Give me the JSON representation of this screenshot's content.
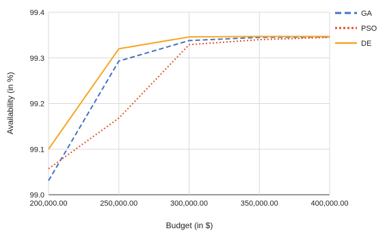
{
  "chart_data": {
    "type": "line",
    "title": "",
    "xlabel": "Budget (in $)",
    "ylabel": "Availability (in %)",
    "x": [
      200000,
      250000,
      300000,
      350000,
      400000
    ],
    "x_tick_labels": [
      "200,000.00",
      "250,000.00",
      "300,000.00",
      "350,000.00",
      "400,000.00"
    ],
    "xlim": [
      200000,
      400000
    ],
    "y_ticks": [
      99.0,
      99.1,
      99.2,
      99.3,
      99.4
    ],
    "y_tick_labels": [
      "99.0",
      "99.1",
      "99.2",
      "99.3",
      "99.4"
    ],
    "ylim": [
      99.0,
      99.4
    ],
    "grid": true,
    "legend_position": "top-right",
    "series": [
      {
        "name": "GA",
        "values": [
          99.031,
          99.293,
          99.338,
          99.345,
          99.346
        ],
        "color": "#4472c4",
        "line_style": "dashed"
      },
      {
        "name": "PSO",
        "values": [
          99.057,
          99.168,
          99.329,
          99.34,
          99.345
        ],
        "color": "#e0522a",
        "line_style": "dotted"
      },
      {
        "name": "DE",
        "values": [
          99.1,
          99.32,
          99.346,
          99.347,
          99.347
        ],
        "color": "#f5a623",
        "line_style": "solid"
      }
    ]
  }
}
